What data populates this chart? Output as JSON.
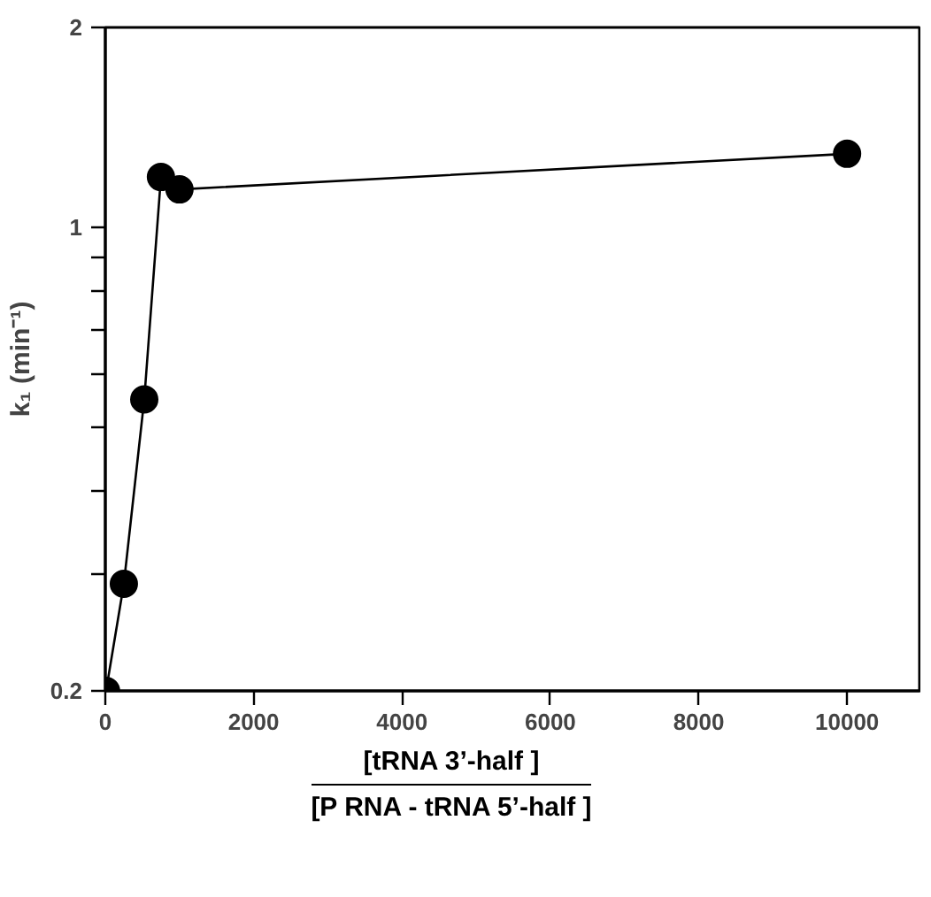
{
  "chart_data": {
    "type": "line",
    "xlabel": "[tRNA 3’-half ]\n[P RNA - tRNA 5’-half ]",
    "ylabel": "k₁ (min⁻¹)",
    "x": [
      10,
      250,
      525,
      750,
      1000,
      10000
    ],
    "series": [
      {
        "color": "#000000",
        "values": [
          0.2,
          0.29,
          0.55,
          1.19,
          1.14,
          1.29
        ]
      }
    ],
    "log": "y",
    "xlim": [
      0,
      11000
    ],
    "ylim": [
      0.2,
      2
    ],
    "xticks": [
      0,
      2000,
      4000,
      6000,
      8000,
      10000
    ],
    "yticks": [
      0.2,
      {
        "value": 0.3,
        "label": null
      },
      {
        "value": 0.4,
        "label": null
      },
      {
        "value": 0.5,
        "label": null
      },
      {
        "value": 0.6,
        "label": null
      },
      {
        "value": 0.7,
        "label": null
      },
      {
        "value": 0.8,
        "label": null
      },
      {
        "value": 0.9,
        "label": null
      },
      1,
      2
    ],
    "marker": "circle",
    "line_style": "solid"
  }
}
